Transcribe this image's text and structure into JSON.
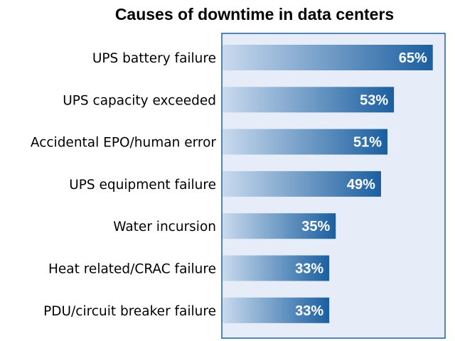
{
  "chart_data": {
    "type": "bar",
    "orientation": "horizontal",
    "title": "Causes of downtime in data centers",
    "categories": [
      "UPS battery failure",
      "UPS capacity exceeded",
      "Accidental EPO/human error",
      "UPS equipment failure",
      "Water incursion",
      "Heat related/CRAC failure",
      "PDU/circuit breaker failure"
    ],
    "values": [
      65,
      53,
      51,
      49,
      35,
      33,
      33
    ],
    "value_labels": [
      "65%",
      "53%",
      "51%",
      "49%",
      "35%",
      "33%",
      "33%"
    ],
    "xlim": [
      0,
      70
    ],
    "grid": false,
    "legend": "none",
    "colors": {
      "plot_background": "#e6edf8",
      "plot_border": "#1f5f9a",
      "bar_light": "#c9daee",
      "bar_dark": "#1b5fa0",
      "value_label": "#ffffff",
      "text": "#000000"
    }
  }
}
